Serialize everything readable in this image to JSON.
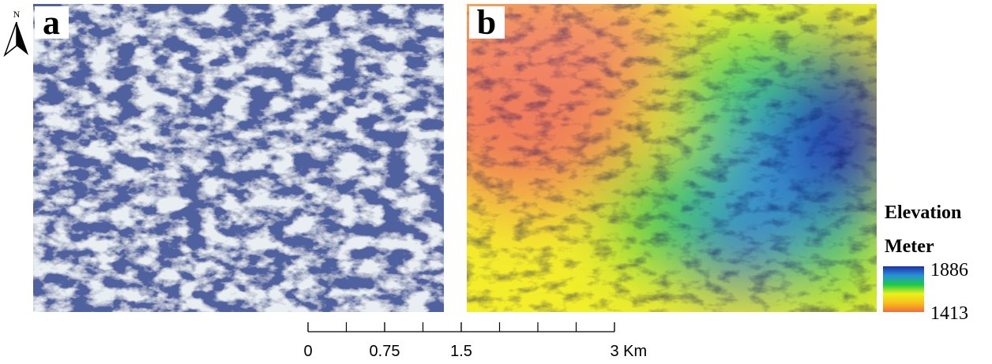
{
  "north_arrow": {
    "label": "N"
  },
  "panels": [
    {
      "label": "a"
    },
    {
      "label": "b"
    }
  ],
  "legend": {
    "title": "Elevation",
    "unit": "Meter",
    "max": 1886,
    "min": 1413,
    "colors": [
      "#1c2fa8",
      "#2a8fd8",
      "#19c94a",
      "#e8f21a",
      "#f7c21a",
      "#f26a3a"
    ]
  },
  "scale_bar": {
    "ticks": [
      0,
      0.75,
      1.5,
      {
        "value": 3,
        "label": "3 Km"
      }
    ]
  }
}
